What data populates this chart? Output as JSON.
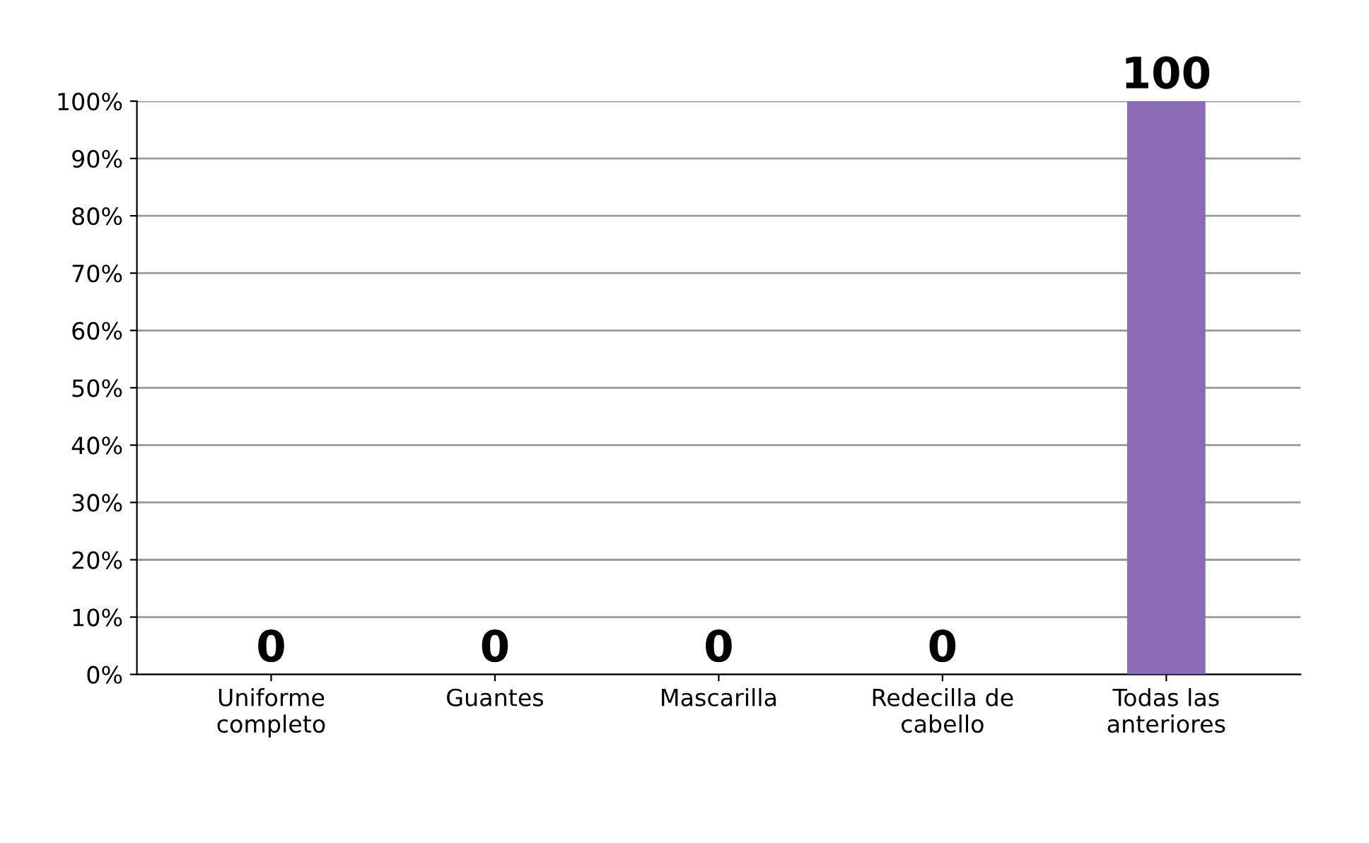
{
  "chart_data": {
    "type": "bar",
    "categories": [
      "Uniforme\ncompleto",
      "Guantes",
      "Mascarilla",
      "Redecilla de\ncabello",
      "Todas las\nanteriores"
    ],
    "values": [
      0,
      0,
      0,
      0,
      100
    ],
    "colors": [
      "#7f9fcf",
      "#a89e78",
      "#222222",
      "#1f3a63",
      "#8b6bb5"
    ],
    "value_labels": [
      "0",
      "0",
      "0",
      "0",
      "100"
    ],
    "ylim": [
      0,
      100
    ],
    "yticks": [
      {
        "value": 0,
        "label": "0%"
      },
      {
        "value": 10,
        "label": "10%"
      },
      {
        "value": 20,
        "label": "20%"
      },
      {
        "value": 30,
        "label": "30%"
      },
      {
        "value": 40,
        "label": "40%"
      },
      {
        "value": 50,
        "label": "50%"
      },
      {
        "value": 60,
        "label": "60%"
      },
      {
        "value": 70,
        "label": "70%"
      },
      {
        "value": 80,
        "label": "80%"
      },
      {
        "value": 90,
        "label": "90%"
      },
      {
        "value": 100,
        "label": "100%"
      }
    ],
    "grid": "y"
  }
}
